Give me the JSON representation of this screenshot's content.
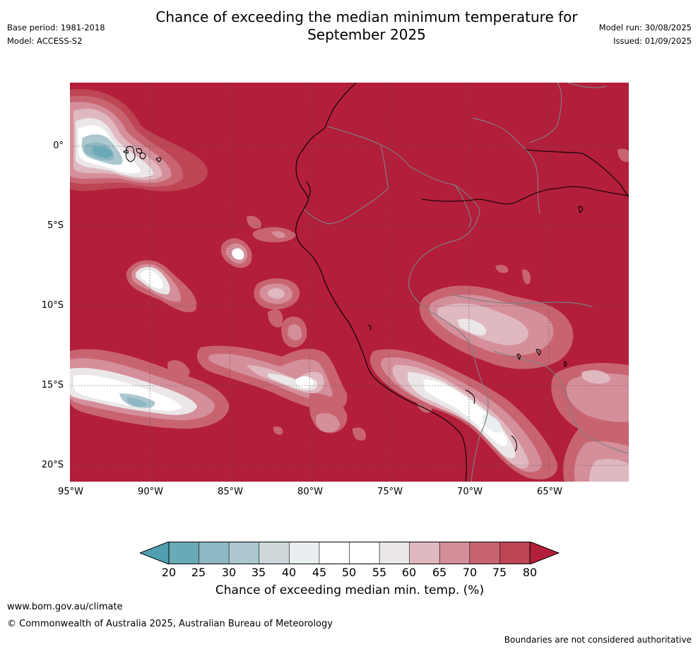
{
  "header": {
    "title_line1": "Chance of exceeding the median minimum temperature for",
    "title_line2": "September 2025",
    "base_period": "Base period: 1981-2018",
    "model": "Model: ACCESS-S2",
    "model_run": "Model run: 30/08/2025",
    "issued": "Issued: 01/09/2025"
  },
  "map": {
    "latitude_labels": [
      "0°",
      "5°S",
      "10°S",
      "15°S",
      "20°S"
    ],
    "longitude_labels": [
      "95°W",
      "90°W",
      "85°W",
      "80°W",
      "75°W",
      "70°W",
      "65°W"
    ],
    "background_category_color": "#b31e3a",
    "coastline_color": "#000000",
    "border_color": "#7f7f7f",
    "grid": true
  },
  "colorbar": {
    "ticks": [
      "20",
      "25",
      "30",
      "35",
      "40",
      "45",
      "50",
      "55",
      "60",
      "65",
      "70",
      "75",
      "80"
    ],
    "colors": [
      "#6aaab8",
      "#8cb7c3",
      "#acc8ce",
      "#cdd7da",
      "#e9eef0",
      "#ffffff",
      "#ffffff",
      "#ebe7e8",
      "#e0b8bf",
      "#d48f9b",
      "#c86470",
      "#bd4554"
    ],
    "under_color": "#4f9fb0",
    "over_color": "#b31e3a",
    "label": "Chance of exceeding median min. temp. (%)"
  },
  "footer": {
    "url": "www.bom.gov.au/climate",
    "copyright": "© Commonwealth of Australia 2025, Australian Bureau of Meteorology",
    "disclaimer": "Boundaries are not considered authoritative"
  }
}
